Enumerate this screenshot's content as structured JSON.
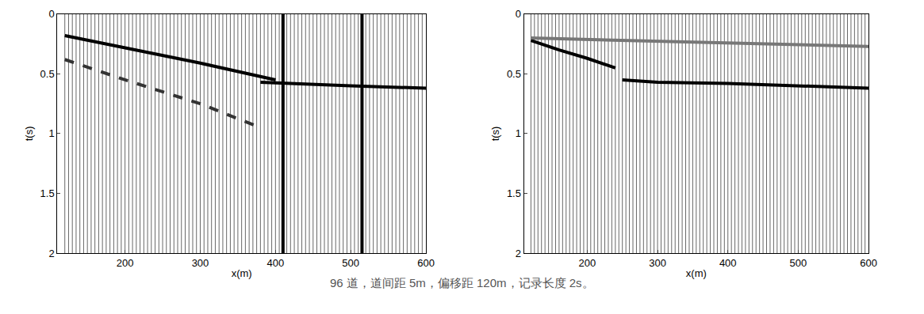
{
  "chart_data": [
    {
      "type": "seismic",
      "xlabel": "x(m)",
      "ylabel": "t(s)",
      "xlim": [
        110,
        600
      ],
      "xticks": [
        200,
        300,
        400,
        500,
        600
      ],
      "ylim": [
        2,
        0
      ],
      "yticks": [
        0,
        0.5,
        1,
        1.5,
        2
      ],
      "traces": {
        "count": 96,
        "spacing": 5,
        "offset": 120,
        "record_length": 2
      },
      "strong_traces": [
        410,
        515
      ],
      "events": [
        {
          "x": [
            120,
            200,
            300,
            400
          ],
          "t": [
            0.18,
            0.28,
            0.41,
            0.55
          ],
          "color": "#000000",
          "line_style": "solid"
        },
        {
          "x": [
            380,
            450,
            500,
            600
          ],
          "t": [
            0.57,
            0.59,
            0.6,
            0.62
          ],
          "color": "#000000",
          "line_style": "solid"
        },
        {
          "x": [
            120,
            200,
            300,
            380
          ],
          "t": [
            0.38,
            0.55,
            0.75,
            0.95
          ],
          "color": "#333333",
          "line_style": "dash"
        }
      ]
    },
    {
      "type": "seismic",
      "xlabel": "x(m)",
      "ylabel": "t(s)",
      "xlim": [
        110,
        600
      ],
      "xticks": [
        200,
        300,
        400,
        500,
        600
      ],
      "ylim": [
        2,
        0
      ],
      "yticks": [
        0,
        0.5,
        1,
        1.5,
        2
      ],
      "traces": {
        "count": 96,
        "spacing": 5,
        "offset": 120,
        "record_length": 2
      },
      "events": [
        {
          "x": [
            120,
            160,
            200,
            240
          ],
          "t": [
            0.22,
            0.3,
            0.37,
            0.45
          ],
          "color": "#000000",
          "line_style": "solid"
        },
        {
          "x": [
            250,
            300,
            400,
            500,
            600
          ],
          "t": [
            0.55,
            0.57,
            0.58,
            0.6,
            0.62
          ],
          "color": "#000000",
          "line_style": "solid"
        },
        {
          "x": [
            120,
            250,
            400,
            600
          ],
          "t": [
            0.2,
            0.22,
            0.24,
            0.27
          ],
          "color": "#777777",
          "line_style": "solid"
        }
      ]
    }
  ],
  "caption": "96 道，道间距 5m，偏移距 120m，记录长度 2s。"
}
